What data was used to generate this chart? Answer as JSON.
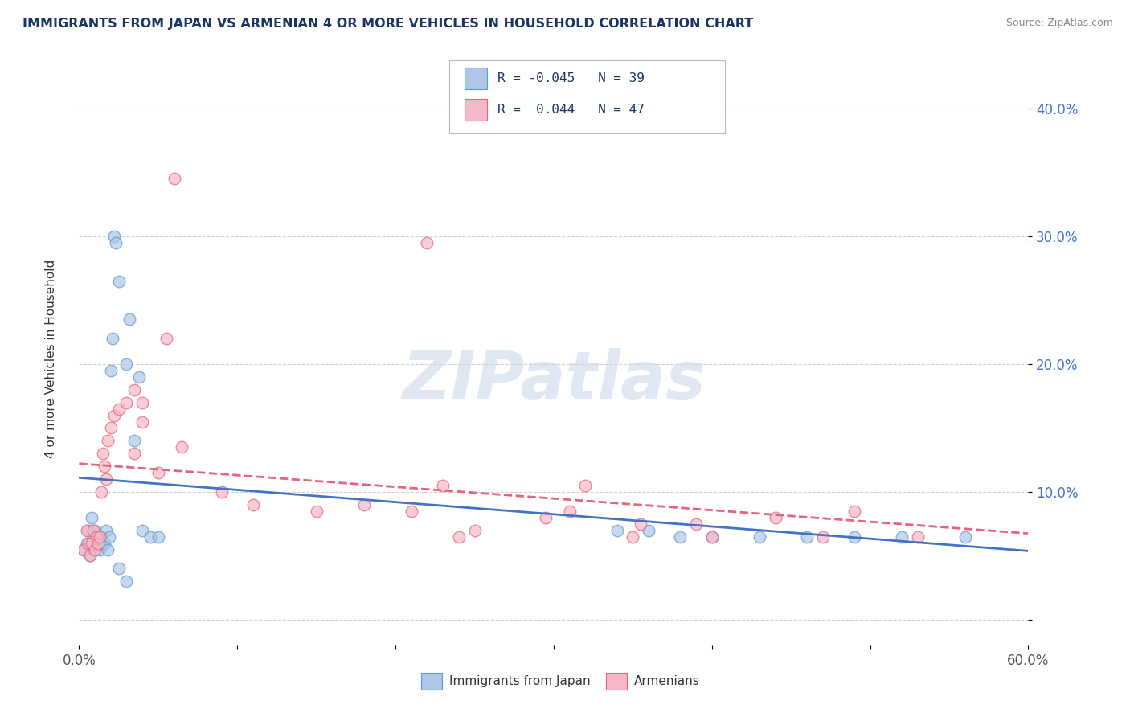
{
  "title": "IMMIGRANTS FROM JAPAN VS ARMENIAN 4 OR MORE VEHICLES IN HOUSEHOLD CORRELATION CHART",
  "source": "Source: ZipAtlas.com",
  "ylabel": "4 or more Vehicles in Household",
  "xlim": [
    0.0,
    0.6
  ],
  "ylim": [
    -0.02,
    0.44
  ],
  "yticks": [
    0.0,
    0.1,
    0.2,
    0.3,
    0.4
  ],
  "ytick_labels": [
    "",
    "10.0%",
    "20.0%",
    "30.0%",
    "40.0%"
  ],
  "xticks": [
    0.0,
    0.1,
    0.2,
    0.3,
    0.4,
    0.5,
    0.6
  ],
  "color_japan": "#aec6e8",
  "color_japan_edge": "#5b9bd5",
  "color_armenian": "#f4b8c8",
  "color_armenian_edge": "#e8637a",
  "color_japan_line": "#4472c4",
  "color_armenian_line": "#e8637a",
  "background_color": "#ffffff",
  "watermark": "ZIPatlas",
  "japan_x": [
    0.003,
    0.005,
    0.006,
    0.007,
    0.008,
    0.009,
    0.01,
    0.011,
    0.012,
    0.013,
    0.014,
    0.015,
    0.016,
    0.017,
    0.018,
    0.019,
    0.02,
    0.021,
    0.022,
    0.023,
    0.025,
    0.03,
    0.032,
    0.035,
    0.038,
    0.04,
    0.045,
    0.05,
    0.34,
    0.36,
    0.38,
    0.4,
    0.43,
    0.46,
    0.49,
    0.52,
    0.56,
    0.025,
    0.03
  ],
  "japan_y": [
    0.055,
    0.06,
    0.07,
    0.05,
    0.08,
    0.055,
    0.07,
    0.06,
    0.065,
    0.055,
    0.065,
    0.06,
    0.06,
    0.07,
    0.055,
    0.065,
    0.195,
    0.22,
    0.3,
    0.295,
    0.265,
    0.2,
    0.235,
    0.14,
    0.19,
    0.07,
    0.065,
    0.065,
    0.07,
    0.07,
    0.065,
    0.065,
    0.065,
    0.065,
    0.065,
    0.065,
    0.065,
    0.04,
    0.03
  ],
  "armenian_x": [
    0.003,
    0.005,
    0.006,
    0.007,
    0.008,
    0.009,
    0.01,
    0.011,
    0.012,
    0.013,
    0.014,
    0.015,
    0.016,
    0.017,
    0.018,
    0.02,
    0.022,
    0.025,
    0.03,
    0.035,
    0.04,
    0.055,
    0.06,
    0.065,
    0.09,
    0.11,
    0.15,
    0.18,
    0.21,
    0.24,
    0.25,
    0.295,
    0.355,
    0.4,
    0.44,
    0.47,
    0.49,
    0.53,
    0.035,
    0.04,
    0.05,
    0.32,
    0.39,
    0.22,
    0.23,
    0.31,
    0.35
  ],
  "armenian_y": [
    0.055,
    0.07,
    0.06,
    0.05,
    0.06,
    0.07,
    0.055,
    0.065,
    0.06,
    0.065,
    0.1,
    0.13,
    0.12,
    0.11,
    0.14,
    0.15,
    0.16,
    0.165,
    0.17,
    0.13,
    0.155,
    0.22,
    0.345,
    0.135,
    0.1,
    0.09,
    0.085,
    0.09,
    0.085,
    0.065,
    0.07,
    0.08,
    0.075,
    0.065,
    0.08,
    0.065,
    0.085,
    0.065,
    0.18,
    0.17,
    0.115,
    0.105,
    0.075,
    0.295,
    0.105,
    0.085,
    0.065
  ]
}
